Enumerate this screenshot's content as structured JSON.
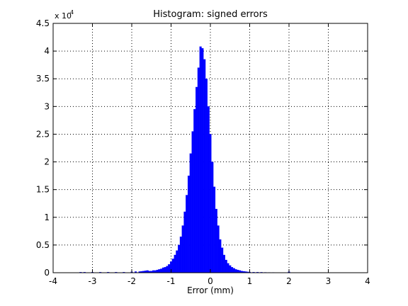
{
  "chart_data": {
    "type": "bar",
    "title": "Histogram: signed errors",
    "xlabel": "Error (mm)",
    "ylabel": "",
    "y_multiplier_label": "x 10",
    "y_multiplier_exponent": "4",
    "xlim": [
      -4,
      4
    ],
    "ylim": [
      0,
      45000
    ],
    "grid": true,
    "bar_color": "#0000ff",
    "bin_width": 0.05,
    "x_tick_labels": [
      "-4",
      "-3",
      "-2",
      "-1",
      "0",
      "1",
      "2",
      "3",
      "4"
    ],
    "x_ticks": [
      -4,
      -3,
      -2,
      -1,
      0,
      1,
      2,
      3,
      4
    ],
    "y_tick_labels": [
      "0",
      "0.5",
      "1",
      "1.5",
      "2",
      "2.5",
      "3",
      "3.5",
      "4",
      "4.5"
    ],
    "y_ticks": [
      0,
      5000,
      10000,
      15000,
      20000,
      25000,
      30000,
      35000,
      40000,
      45000
    ],
    "bins_x": [
      -3.3,
      -3.2,
      -3.0,
      -2.8,
      -2.6,
      -2.4,
      -2.2,
      -2.0,
      -1.9,
      -1.8,
      -1.75,
      -1.7,
      -1.65,
      -1.6,
      -1.55,
      -1.5,
      -1.45,
      -1.4,
      -1.35,
      -1.3,
      -1.25,
      -1.2,
      -1.15,
      -1.1,
      -1.05,
      -1.0,
      -0.95,
      -0.9,
      -0.85,
      -0.8,
      -0.75,
      -0.7,
      -0.65,
      -0.6,
      -0.55,
      -0.5,
      -0.45,
      -0.4,
      -0.35,
      -0.3,
      -0.25,
      -0.2,
      -0.15,
      -0.1,
      -0.05,
      0.0,
      0.05,
      0.1,
      0.15,
      0.2,
      0.25,
      0.3,
      0.35,
      0.4,
      0.45,
      0.5,
      0.55,
      0.6,
      0.65,
      0.7,
      0.75,
      0.8,
      0.85,
      0.9,
      0.95,
      1.0,
      1.1,
      1.2,
      1.3,
      1.4,
      1.5,
      1.6,
      1.7,
      1.8,
      1.9,
      2.0
    ],
    "bins_counts": [
      100,
      100,
      100,
      100,
      100,
      100,
      100,
      150,
      200,
      200,
      250,
      300,
      350,
      400,
      300,
      300,
      400,
      400,
      500,
      600,
      700,
      900,
      1000,
      1200,
      1500,
      2000,
      2500,
      3200,
      4000,
      5000,
      6500,
      8500,
      11000,
      14000,
      17500,
      21500,
      25500,
      29500,
      33500,
      37000,
      40800,
      40500,
      38500,
      35000,
      30000,
      25000,
      20000,
      15500,
      11500,
      8500,
      6000,
      4500,
      3200,
      2300,
      1700,
      1300,
      1000,
      800,
      600,
      500,
      400,
      300,
      250,
      200,
      150,
      120,
      100,
      100,
      80,
      60,
      50,
      50,
      40,
      30,
      30,
      150
    ]
  }
}
